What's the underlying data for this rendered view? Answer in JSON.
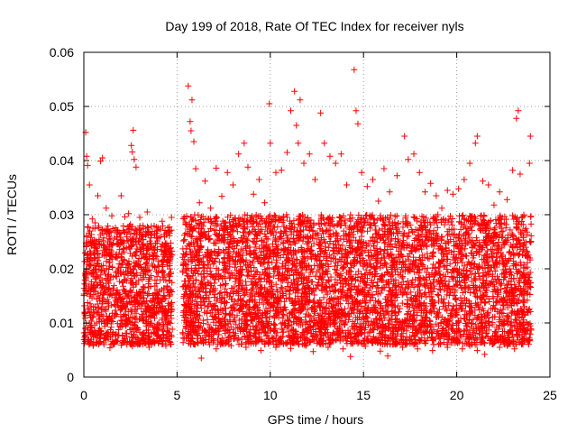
{
  "chart_data": {
    "type": "scatter",
    "title": "Day 199 of 2018, Rate Of TEC Index for receiver nyls",
    "xlabel": "GPS time / hours",
    "ylabel": "ROTI / TECUs",
    "xlim": [
      0,
      25
    ],
    "ylim": [
      0,
      0.06
    ],
    "x_ticks": [
      0,
      5,
      10,
      15,
      20,
      25
    ],
    "x_tick_labels": [
      "0",
      "5",
      "10",
      "15",
      "20",
      "25"
    ],
    "y_ticks": [
      0,
      0.01,
      0.02,
      0.03,
      0.04,
      0.05,
      0.06
    ],
    "y_tick_labels": [
      "0",
      "0.01",
      "0.02",
      "0.03",
      "0.04",
      "0.05",
      "0.06"
    ],
    "grid": true,
    "marker": "+",
    "color": "#ff0000",
    "series": [
      {
        "points": [
          [
            0.05,
            0.0074
          ],
          [
            0.1,
            0.0452
          ],
          [
            0.15,
            0.0408
          ],
          [
            0.2,
            0.0391
          ],
          [
            0.3,
            0.0355
          ],
          [
            0.45,
            0.0292
          ],
          [
            0.6,
            0.0285
          ],
          [
            0.75,
            0.0335
          ],
          [
            0.9,
            0.0399
          ],
          [
            1.0,
            0.0405
          ],
          [
            1.2,
            0.0312
          ],
          [
            1.5,
            0.0298
          ],
          [
            1.8,
            0.0268
          ],
          [
            2.0,
            0.0335
          ],
          [
            2.2,
            0.0296
          ],
          [
            2.4,
            0.0302
          ],
          [
            2.5,
            0.0282
          ],
          [
            2.55,
            0.0428
          ],
          [
            2.6,
            0.0416
          ],
          [
            2.65,
            0.0456
          ],
          [
            2.7,
            0.0402
          ],
          [
            2.8,
            0.0388
          ],
          [
            3.0,
            0.0295
          ],
          [
            3.2,
            0.0274
          ],
          [
            3.4,
            0.0305
          ],
          [
            3.6,
            0.0262
          ],
          [
            3.9,
            0.0258
          ],
          [
            4.2,
            0.0288
          ],
          [
            4.5,
            0.0276
          ],
          [
            4.7,
            0.0295
          ],
          [
            0.2,
            0.0065
          ],
          [
            0.5,
            0.0058
          ],
          [
            0.8,
            0.0062
          ],
          [
            1.1,
            0.0071
          ],
          [
            1.4,
            0.0054
          ],
          [
            1.7,
            0.0068
          ],
          [
            2.0,
            0.0059
          ],
          [
            2.3,
            0.0075
          ],
          [
            2.6,
            0.0057
          ],
          [
            2.9,
            0.0062
          ],
          [
            3.2,
            0.0069
          ],
          [
            3.5,
            0.0055
          ],
          [
            3.8,
            0.0063
          ],
          [
            4.1,
            0.0072
          ],
          [
            4.4,
            0.0058
          ],
          [
            4.6,
            0.0066
          ],
          [
            5.3,
            0.0082
          ],
          [
            5.5,
            0.0098
          ],
          [
            5.6,
            0.0538
          ],
          [
            5.7,
            0.0472
          ],
          [
            5.75,
            0.0455
          ],
          [
            5.8,
            0.0512
          ],
          [
            5.9,
            0.0435
          ],
          [
            6.0,
            0.0385
          ],
          [
            6.2,
            0.0322
          ],
          [
            6.5,
            0.0362
          ],
          [
            6.8,
            0.0312
          ],
          [
            7.1,
            0.0386
          ],
          [
            7.4,
            0.0334
          ],
          [
            7.7,
            0.0378
          ],
          [
            8.0,
            0.0355
          ],
          [
            8.3,
            0.0412
          ],
          [
            8.6,
            0.0432
          ],
          [
            8.8,
            0.0388
          ],
          [
            9.1,
            0.0338
          ],
          [
            9.4,
            0.0365
          ],
          [
            9.7,
            0.0322
          ],
          [
            9.95,
            0.0505
          ],
          [
            10.0,
            0.0432
          ],
          [
            10.3,
            0.0378
          ],
          [
            10.6,
            0.0382
          ],
          [
            10.9,
            0.0415
          ],
          [
            11.1,
            0.0492
          ],
          [
            11.3,
            0.0528
          ],
          [
            11.4,
            0.0465
          ],
          [
            11.5,
            0.0432
          ],
          [
            11.6,
            0.0512
          ],
          [
            11.8,
            0.0395
          ],
          [
            12.1,
            0.0412
          ],
          [
            12.4,
            0.0365
          ],
          [
            12.7,
            0.0488
          ],
          [
            12.9,
            0.0432
          ],
          [
            13.2,
            0.0408
          ],
          [
            13.5,
            0.0395
          ],
          [
            13.8,
            0.0412
          ],
          [
            14.1,
            0.0355
          ],
          [
            14.5,
            0.0568
          ],
          [
            14.6,
            0.0492
          ],
          [
            14.7,
            0.0468
          ],
          [
            14.9,
            0.0378
          ],
          [
            15.2,
            0.0352
          ],
          [
            15.5,
            0.0365
          ],
          [
            15.8,
            0.0325
          ],
          [
            16.1,
            0.0385
          ],
          [
            16.4,
            0.0342
          ],
          [
            16.8,
            0.0372
          ],
          [
            17.2,
            0.0445
          ],
          [
            17.4,
            0.0402
          ],
          [
            17.7,
            0.0412
          ],
          [
            18.0,
            0.0378
          ],
          [
            18.3,
            0.0342
          ],
          [
            18.6,
            0.0358
          ],
          [
            18.9,
            0.0335
          ],
          [
            19.2,
            0.0312
          ],
          [
            19.5,
            0.0345
          ],
          [
            19.8,
            0.0338
          ],
          [
            20.1,
            0.0348
          ],
          [
            20.4,
            0.0365
          ],
          [
            20.7,
            0.0395
          ],
          [
            21.0,
            0.0432
          ],
          [
            21.1,
            0.0445
          ],
          [
            21.4,
            0.0362
          ],
          [
            21.7,
            0.0355
          ],
          [
            22.0,
            0.0318
          ],
          [
            22.3,
            0.0342
          ],
          [
            22.7,
            0.0328
          ],
          [
            23.0,
            0.0382
          ],
          [
            23.2,
            0.0478
          ],
          [
            23.3,
            0.0492
          ],
          [
            23.4,
            0.0375
          ],
          [
            23.6,
            0.0298
          ],
          [
            23.9,
            0.0395
          ],
          [
            23.95,
            0.0445
          ],
          [
            5.5,
            0.0072
          ],
          [
            5.9,
            0.0061
          ],
          [
            6.3,
            0.0035
          ],
          [
            6.7,
            0.0065
          ],
          [
            7.1,
            0.0052
          ],
          [
            7.5,
            0.0068
          ],
          [
            7.9,
            0.0058
          ],
          [
            8.3,
            0.0072
          ],
          [
            8.7,
            0.0055
          ],
          [
            9.1,
            0.0062
          ],
          [
            9.5,
            0.0049
          ],
          [
            9.9,
            0.0068
          ],
          [
            10.3,
            0.0055
          ],
          [
            10.7,
            0.0062
          ],
          [
            11.1,
            0.0053
          ],
          [
            11.5,
            0.0066
          ],
          [
            11.9,
            0.0058
          ],
          [
            12.3,
            0.0047
          ],
          [
            12.7,
            0.0062
          ],
          [
            13.1,
            0.0055
          ],
          [
            13.5,
            0.0068
          ],
          [
            13.9,
            0.0052
          ],
          [
            14.3,
            0.0038
          ],
          [
            14.7,
            0.0062
          ],
          [
            15.1,
            0.0057
          ],
          [
            15.5,
            0.0065
          ],
          [
            15.9,
            0.0048
          ],
          [
            16.3,
            0.0039
          ],
          [
            16.7,
            0.0061
          ],
          [
            17.1,
            0.0055
          ],
          [
            17.5,
            0.0067
          ],
          [
            17.9,
            0.0052
          ],
          [
            18.3,
            0.0062
          ],
          [
            18.7,
            0.0049
          ],
          [
            19.1,
            0.0063
          ],
          [
            19.5,
            0.0055
          ],
          [
            19.9,
            0.0068
          ],
          [
            20.3,
            0.0052
          ],
          [
            20.7,
            0.0058
          ],
          [
            21.1,
            0.0049
          ],
          [
            21.5,
            0.0042
          ],
          [
            21.9,
            0.0061
          ],
          [
            22.3,
            0.0055
          ],
          [
            22.7,
            0.0058
          ],
          [
            23.1,
            0.0052
          ],
          [
            23.5,
            0.0066
          ],
          [
            23.9,
            0.0072
          ]
        ]
      }
    ],
    "dense_band": {
      "description_free": true,
      "segments": [
        {
          "x": [
            0.0,
            4.75
          ],
          "y_low": 0.006,
          "y_high": 0.028
        },
        {
          "x": [
            5.3,
            24.0
          ],
          "y_low": 0.006,
          "y_high": 0.03
        }
      ]
    }
  }
}
